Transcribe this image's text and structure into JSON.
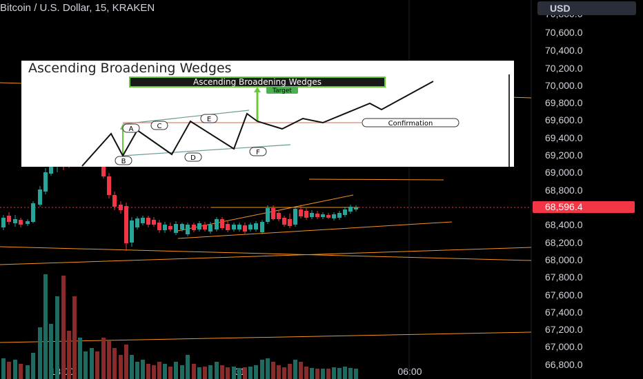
{
  "header": {
    "symbol_title": "Bitcoin / U.S. Dollar, 15, KRAKEN",
    "currency_button": "USD"
  },
  "price_axis": {
    "labels": [
      "70,800.0",
      "70,600.0",
      "70,400.0",
      "70,200.0",
      "70,000.0",
      "69,800.0",
      "69,600.0",
      "69,400.0",
      "69,200.0",
      "69,000.0",
      "68,800.0",
      "68,400.0",
      "68,200.0",
      "68,000.0",
      "67,800.0",
      "67,600.0",
      "67,400.0",
      "67,200.0",
      "67,000.0",
      "66,800.0"
    ],
    "last_price": "68,596.4"
  },
  "time_axis": {
    "labels": [
      "18:00",
      "31",
      "06:00"
    ]
  },
  "inset": {
    "title": "Ascending Broadening Wedges",
    "banner": "Ascending Broadening Wedges",
    "target_label": "Target",
    "confirmation_label": "Confirmation",
    "point_labels": [
      "A",
      "B",
      "C",
      "D",
      "E",
      "F"
    ]
  },
  "colors": {
    "bull": "#26a69a",
    "bear": "#f23645",
    "volume_bull": "#1e6b61",
    "volume_bear": "#8a2b2b",
    "trendline": "#f7931a",
    "background": "#000000"
  }
}
